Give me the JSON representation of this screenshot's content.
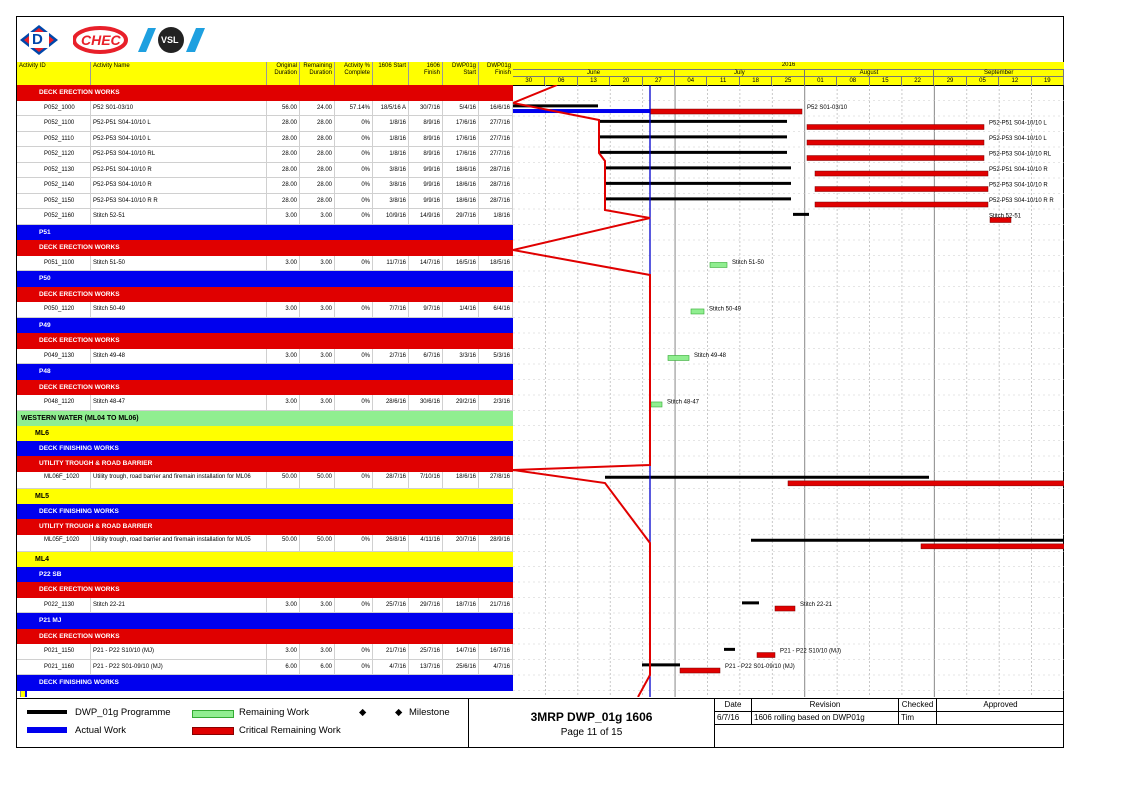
{
  "logos": {
    "d_logo": "D",
    "chec_logo": "CHEC",
    "vsl_logo": "VSL"
  },
  "columns": {
    "activity_id": "Activity ID",
    "activity_name": "Activity Name",
    "orig_dur": "Original Duration",
    "rem_dur": "Remaining Duration",
    "pct": "Activity % Complete",
    "start_1606": "1606 Start",
    "finish_1606": "1606 Finish",
    "dwp_start": "DWP01g Start",
    "dwp_finish": "DWP01g Finish"
  },
  "timeline": {
    "year": "2016",
    "months": [
      {
        "label": "June"
      },
      {
        "label": "July"
      },
      {
        "label": "August"
      },
      {
        "label": "September"
      }
    ],
    "weeks": [
      "30",
      "06",
      "13",
      "20",
      "27",
      "04",
      "11",
      "18",
      "25",
      "01",
      "08",
      "15",
      "22",
      "29",
      "05",
      "12",
      "19"
    ]
  },
  "rows": [
    {
      "kind": "band",
      "color": "red",
      "label": "DECK ERECTION WORKS"
    },
    {
      "kind": "act",
      "id": "P052_1000",
      "name": "P52 S01-03/10",
      "od": "56.00",
      "rd": "24.00",
      "pct": "57.14%",
      "s": "18/5/16 A",
      "f": "30/7/16",
      "ds": "5/4/16",
      "df": "16/6/16",
      "bar_label": "P52 S01-03/10"
    },
    {
      "kind": "act",
      "id": "P052_1100",
      "name": "P52-P51 S04-10/10 L",
      "od": "28.00",
      "rd": "28.00",
      "pct": "0%",
      "s": "1/8/16",
      "f": "8/9/16",
      "ds": "17/6/16",
      "df": "27/7/16",
      "bar_label": "P52-P51 S04-10/10 L"
    },
    {
      "kind": "act",
      "id": "P052_1110",
      "name": "P52-P53 S04-10/10 L",
      "od": "28.00",
      "rd": "28.00",
      "pct": "0%",
      "s": "1/8/16",
      "f": "8/9/16",
      "ds": "17/6/16",
      "df": "27/7/16",
      "bar_label": "P52-P53 S04-10/10 L"
    },
    {
      "kind": "act",
      "id": "P052_1120",
      "name": "P52-P53 S04-10/10 RL",
      "od": "28.00",
      "rd": "28.00",
      "pct": "0%",
      "s": "1/8/16",
      "f": "8/9/16",
      "ds": "17/6/16",
      "df": "27/7/16",
      "bar_label": "P52-P53 S04-10/10 RL"
    },
    {
      "kind": "act",
      "id": "P052_1130",
      "name": "P52-P51 S04-10/10 R",
      "od": "28.00",
      "rd": "28.00",
      "pct": "0%",
      "s": "3/8/16",
      "f": "9/9/16",
      "ds": "18/6/16",
      "df": "28/7/16",
      "bar_label": "P52-P51 S04-10/10 R"
    },
    {
      "kind": "act",
      "id": "P052_1140",
      "name": "P52-P53 S04-10/10 R",
      "od": "28.00",
      "rd": "28.00",
      "pct": "0%",
      "s": "3/8/16",
      "f": "9/9/16",
      "ds": "18/6/16",
      "df": "28/7/16",
      "bar_label": "P52-P53 S04-10/10 R"
    },
    {
      "kind": "act",
      "id": "P052_1150",
      "name": "P52-P53 S04-10/10 R R",
      "od": "28.00",
      "rd": "28.00",
      "pct": "0%",
      "s": "3/8/16",
      "f": "9/9/16",
      "ds": "18/6/16",
      "df": "28/7/16",
      "bar_label": "P52-P53 S04-10/10 R R"
    },
    {
      "kind": "act",
      "id": "P052_1160",
      "name": "Stitch 52-51",
      "od": "3.00",
      "rd": "3.00",
      "pct": "0%",
      "s": "10/9/16",
      "f": "14/9/16",
      "ds": "29/7/16",
      "df": "1/8/16",
      "bar_label": "Stitch 52-51"
    },
    {
      "kind": "band",
      "color": "blue",
      "label": "P51"
    },
    {
      "kind": "band",
      "color": "red",
      "label": "DECK ERECTION WORKS"
    },
    {
      "kind": "act",
      "id": "P051_1100",
      "name": "Stitch 51-50",
      "od": "3.00",
      "rd": "3.00",
      "pct": "0%",
      "s": "11/7/16",
      "f": "14/7/16",
      "ds": "16/5/16",
      "df": "18/5/16",
      "bar_label": "Stitch 51-50"
    },
    {
      "kind": "band",
      "color": "blue",
      "label": "P50"
    },
    {
      "kind": "band",
      "color": "red",
      "label": "DECK ERECTION WORKS"
    },
    {
      "kind": "act",
      "id": "P050_1120",
      "name": "Stitch 50-49",
      "od": "3.00",
      "rd": "3.00",
      "pct": "0%",
      "s": "7/7/16",
      "f": "9/7/16",
      "ds": "1/4/16",
      "df": "6/4/16",
      "bar_label": "Stitch 50-49"
    },
    {
      "kind": "band",
      "color": "blue",
      "label": "P49"
    },
    {
      "kind": "band",
      "color": "red",
      "label": "DECK ERECTION WORKS"
    },
    {
      "kind": "act",
      "id": "P049_1130",
      "name": "Stitch 49-48",
      "od": "3.00",
      "rd": "3.00",
      "pct": "0%",
      "s": "2/7/16",
      "f": "6/7/16",
      "ds": "3/3/16",
      "df": "5/3/16",
      "bar_label": "Stitch 49-48"
    },
    {
      "kind": "band",
      "color": "blue",
      "label": "P48"
    },
    {
      "kind": "band",
      "color": "red",
      "label": "DECK ERECTION WORKS"
    },
    {
      "kind": "act",
      "id": "P048_1120",
      "name": "Stitch 48-47",
      "od": "3.00",
      "rd": "3.00",
      "pct": "0%",
      "s": "28/6/16",
      "f": "30/6/16",
      "ds": "29/2/16",
      "df": "2/3/16",
      "bar_label": "Stitch 48-47"
    },
    {
      "kind": "band",
      "color": "green",
      "label": "WESTERN WATER (ML04 TO ML06)"
    },
    {
      "kind": "band",
      "color": "yellow",
      "label": "ML6"
    },
    {
      "kind": "band",
      "color": "blue",
      "label": "DECK FINISHING WORKS"
    },
    {
      "kind": "band",
      "color": "red",
      "label": "UTILITY TROUGH & ROAD BARRIER"
    },
    {
      "kind": "act2",
      "id": "ML06F_1020",
      "name": "Utility trough, road barrier and firemain installation for ML06",
      "od": "50.00",
      "rd": "50.00",
      "pct": "0%",
      "s": "28/7/16",
      "f": "7/10/16",
      "ds": "18/6/16",
      "df": "27/8/16",
      "bar_label": ""
    },
    {
      "kind": "band",
      "color": "yellow",
      "label": "ML5"
    },
    {
      "kind": "band",
      "color": "blue",
      "label": "DECK FINISHING WORKS"
    },
    {
      "kind": "band",
      "color": "red",
      "label": "UTILITY TROUGH & ROAD BARRIER"
    },
    {
      "kind": "act2",
      "id": "ML05F_1020",
      "name": "Utility trough, road barrier and firemain installation for ML05",
      "od": "50.00",
      "rd": "50.00",
      "pct": "0%",
      "s": "26/8/16",
      "f": "4/11/16",
      "ds": "20/7/16",
      "df": "28/9/16",
      "bar_label": ""
    },
    {
      "kind": "band",
      "color": "yellow",
      "label": "ML4"
    },
    {
      "kind": "band",
      "color": "blue",
      "label": "P22 SB"
    },
    {
      "kind": "band",
      "color": "red",
      "label": "DECK ERECTION WORKS"
    },
    {
      "kind": "act",
      "id": "P022_1130",
      "name": "Stitch 22-21",
      "od": "3.00",
      "rd": "3.00",
      "pct": "0%",
      "s": "25/7/16",
      "f": "29/7/16",
      "ds": "18/7/16",
      "df": "21/7/16",
      "bar_label": "Stitch 22-21"
    },
    {
      "kind": "band",
      "color": "blue",
      "label": "P21 MJ"
    },
    {
      "kind": "band",
      "color": "red",
      "label": "DECK ERECTION WORKS"
    },
    {
      "kind": "act",
      "id": "P021_1150",
      "name": "P21 - P22 S10/10 (MJ)",
      "od": "3.00",
      "rd": "3.00",
      "pct": "0%",
      "s": "21/7/16",
      "f": "25/7/16",
      "ds": "14/7/16",
      "df": "16/7/16",
      "bar_label": "P21 - P22 S10/10 (MJ)"
    },
    {
      "kind": "act",
      "id": "P021_1160",
      "name": "P21 - P22 S01-09/10 (MJ)",
      "od": "6.00",
      "rd": "6.00",
      "pct": "0%",
      "s": "4/7/16",
      "f": "13/7/16",
      "ds": "25/6/16",
      "df": "4/7/16",
      "bar_label": "P21 - P22 S01-09/10 (MJ)"
    },
    {
      "kind": "band",
      "color": "blue",
      "label": "DECK FINISHING WORKS"
    }
  ],
  "gantt_bars": [
    {
      "row": 1,
      "black": [
        0,
        85
      ],
      "blue": [
        0,
        137
      ],
      "red": [
        137,
        289
      ]
    },
    {
      "row": 2,
      "black": [
        87,
        274
      ],
      "red": [
        294,
        471
      ]
    },
    {
      "row": 3,
      "black": [
        87,
        274
      ],
      "red": [
        294,
        471
      ]
    },
    {
      "row": 4,
      "black": [
        87,
        274
      ],
      "red": [
        294,
        471
      ]
    },
    {
      "row": 5,
      "black": [
        92,
        278
      ],
      "red": [
        302,
        475
      ]
    },
    {
      "row": 6,
      "black": [
        92,
        278
      ],
      "red": [
        302,
        475
      ]
    },
    {
      "row": 7,
      "black": [
        92,
        278
      ],
      "red": [
        302,
        475
      ]
    },
    {
      "row": 8,
      "black": [
        280,
        296
      ],
      "red": [
        477,
        498
      ]
    },
    {
      "row": 11,
      "green": [
        197,
        214
      ]
    },
    {
      "row": 14,
      "green": [
        178,
        191
      ]
    },
    {
      "row": 17,
      "green": [
        155,
        176
      ]
    },
    {
      "row": 20,
      "green": [
        138,
        149
      ]
    },
    {
      "row": 25,
      "black": [
        92,
        416
      ],
      "red": [
        275,
        551
      ]
    },
    {
      "row": 29,
      "black": [
        238,
        551
      ],
      "red": [
        408,
        551
      ]
    },
    {
      "row": 33,
      "black": [
        229,
        246
      ],
      "red": [
        262,
        282
      ]
    },
    {
      "row": 36,
      "black": [
        211,
        222
      ],
      "red": [
        244,
        262
      ]
    },
    {
      "row": 37,
      "black": [
        129,
        167
      ],
      "red": [
        167,
        207
      ]
    }
  ],
  "legend": {
    "programme": "DWP_01g Programme",
    "actual": "Actual Work",
    "remaining": "Remaining Work",
    "critical": "Critical Remaining Work",
    "milestone": "Milestone",
    "colors": {
      "programme": "#000000",
      "actual": "#0000ee",
      "remaining": "#90ee90",
      "critical": "#e00000"
    }
  },
  "title_block": {
    "title": "3MRP DWP_01g 1606",
    "page": "Page 11 of 15"
  },
  "revision": {
    "headers": {
      "date": "Date",
      "revision": "Revision",
      "checked": "Checked",
      "approved": "Approved"
    },
    "rows": [
      {
        "date": "6/7/16",
        "revision": "1606 rolling based on DWP01g",
        "checked": "Tim",
        "approved": ""
      }
    ]
  }
}
